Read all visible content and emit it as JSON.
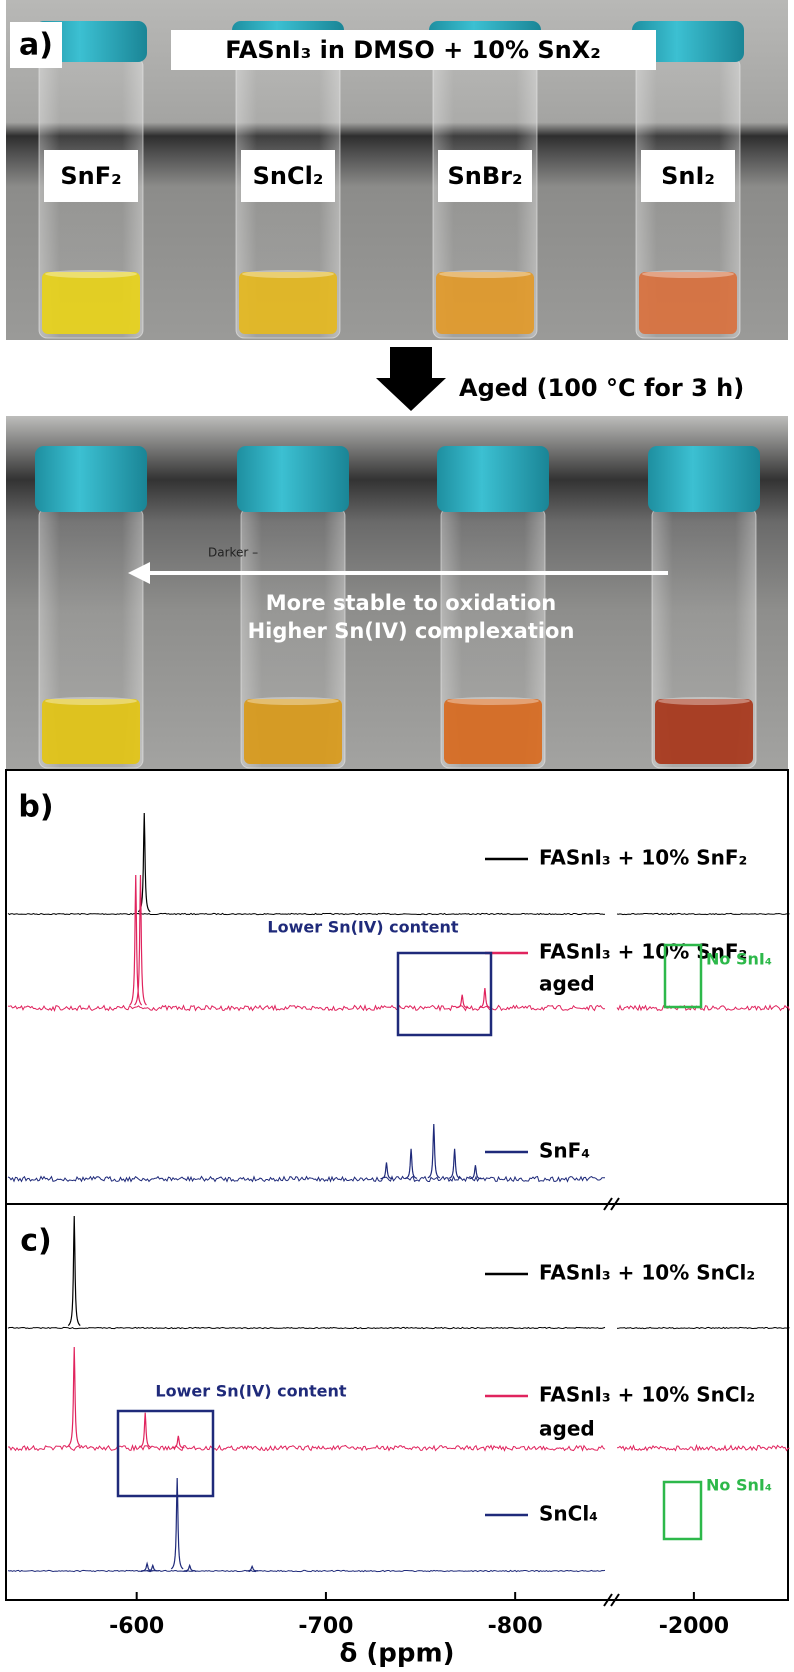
{
  "photo_top": {
    "label": "a)",
    "title": "FASnI₃ in DMSO + 10% SnX₂",
    "vials": [
      "SnF₂",
      "SnCl₂",
      "SnBr₂",
      "SnI₂"
    ]
  },
  "aging": {
    "text": "Aged (100 °C for 3 h)"
  },
  "photo_bottom": {
    "note": "Darker –",
    "arrow_text": [
      "More stable to oxidation",
      "Higher Sn(IV) complexation"
    ]
  },
  "chart_data": {
    "type": "line",
    "xlabel": "δ (ppm)",
    "xlim": [
      -532,
      -848
    ],
    "x2lim": [
      -1960,
      -2050
    ],
    "xticks": [
      -600,
      -700,
      -800
    ],
    "x2ticks": [
      -2000
    ],
    "panels": [
      {
        "label": "b)",
        "traces": [
          {
            "legend": [
              "FASnI₃ + 10% SnF₂"
            ],
            "color": "#000000",
            "peaks": [
              {
                "ppm": -604,
                "intensity": 1
              }
            ]
          },
          {
            "legend": [
              "FASnI₃ + 10% SnF₂",
              "aged"
            ],
            "color": "#e0245e",
            "peaks": [
              {
                "ppm": -599.5,
                "intensity": 1
              },
              {
                "ppm": -602,
                "intensity": 1
              },
              {
                "ppm": -772,
                "intensity": 0.1
              },
              {
                "ppm": -784,
                "intensity": 0.15
              }
            ]
          },
          {
            "legend": [
              "SnF₄"
            ],
            "color": "#1f2a7a",
            "peaks": [
              {
                "ppm": -732,
                "intensity": 0.3
              },
              {
                "ppm": -745,
                "intensity": 0.55
              },
              {
                "ppm": -757,
                "intensity": 1
              },
              {
                "ppm": -768,
                "intensity": 0.55
              },
              {
                "ppm": -779,
                "intensity": 0.25
              }
            ]
          }
        ],
        "annotations": [
          "Lower Sn(IV) content",
          "No SnI₄"
        ]
      },
      {
        "label": "c)",
        "traces": [
          {
            "legend": [
              "FASnI₃ + 10% SnCl₂"
            ],
            "color": "#000000",
            "peaks": [
              {
                "ppm": -567,
                "intensity": 1
              }
            ]
          },
          {
            "legend": [
              "FASnI₃ + 10% SnCl₂",
              "aged"
            ],
            "color": "#e0245e",
            "peaks": [
              {
                "ppm": -567,
                "intensity": 1
              },
              {
                "ppm": -604.5,
                "intensity": 0.35
              },
              {
                "ppm": -622,
                "intensity": 0.12
              }
            ]
          },
          {
            "legend": [
              "SnCl₄"
            ],
            "color": "#1f2a7a",
            "peaks": [
              {
                "ppm": -605.5,
                "intensity": 0.08
              },
              {
                "ppm": -608.5,
                "intensity": 0.06
              },
              {
                "ppm": -621.4,
                "intensity": 1
              },
              {
                "ppm": -628,
                "intensity": 0.06
              },
              {
                "ppm": -661,
                "intensity": 0.05
              }
            ]
          }
        ],
        "annotations": [
          "Lower Sn(IV) content",
          "No SnI₄"
        ]
      }
    ]
  }
}
